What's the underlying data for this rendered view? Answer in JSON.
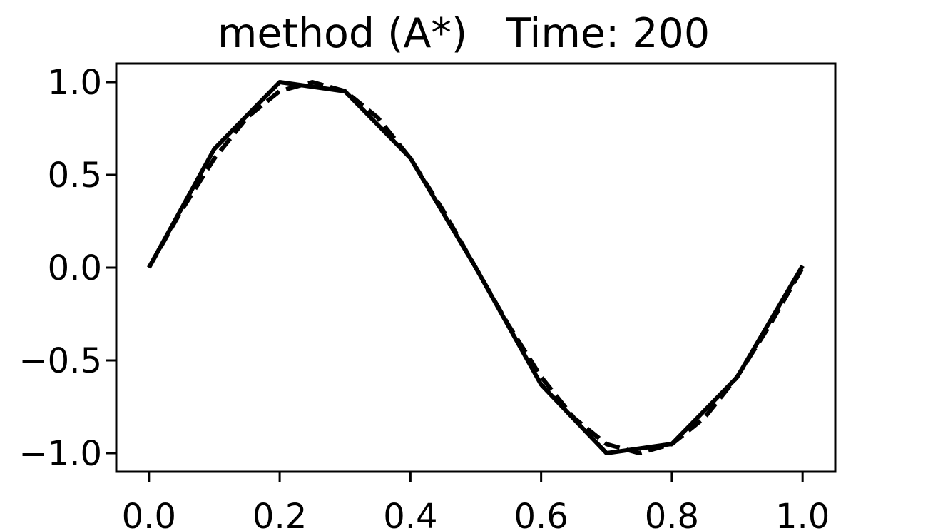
{
  "chart_data": {
    "type": "line",
    "title": "method (A*)   Time: 200",
    "xlabel": "",
    "ylabel": "",
    "xlim": [
      -0.05,
      1.05
    ],
    "ylim": [
      -1.1,
      1.1
    ],
    "xticks": [
      0.0,
      0.2,
      0.4,
      0.6,
      0.8,
      1.0
    ],
    "xtick_labels": [
      "0.0",
      "0.2",
      "0.4",
      "0.6",
      "0.8",
      "1.0"
    ],
    "yticks": [
      1.0,
      0.5,
      0.0,
      -0.5,
      -1.0
    ],
    "ytick_labels": [
      "1.0",
      "0.5",
      "0.0",
      "−0.5",
      "−1.0"
    ],
    "grid": false,
    "legend": false,
    "series": [
      {
        "style": "solid",
        "color": "#000000",
        "x": [
          0.0,
          0.1,
          0.2,
          0.3,
          0.4,
          0.5,
          0.6,
          0.7,
          0.8,
          0.9,
          1.0
        ],
        "y": [
          0.0,
          0.64,
          1.0,
          0.95,
          0.59,
          0.0,
          -0.63,
          -1.0,
          -0.95,
          -0.59,
          0.01
        ]
      },
      {
        "style": "dashed",
        "color": "#000000",
        "x": [
          0.0,
          0.05,
          0.1,
          0.15,
          0.2,
          0.25,
          0.3,
          0.35,
          0.4,
          0.45,
          0.5,
          0.55,
          0.6,
          0.65,
          0.7,
          0.75,
          0.8,
          0.85,
          0.9,
          0.95,
          1.0
        ],
        "y": [
          0.0,
          0.309,
          0.588,
          0.809,
          0.951,
          1.0,
          0.951,
          0.809,
          0.588,
          0.309,
          0.0,
          -0.309,
          -0.588,
          -0.809,
          -0.951,
          -1.0,
          -0.951,
          -0.809,
          -0.588,
          -0.309,
          0.0
        ]
      }
    ]
  }
}
